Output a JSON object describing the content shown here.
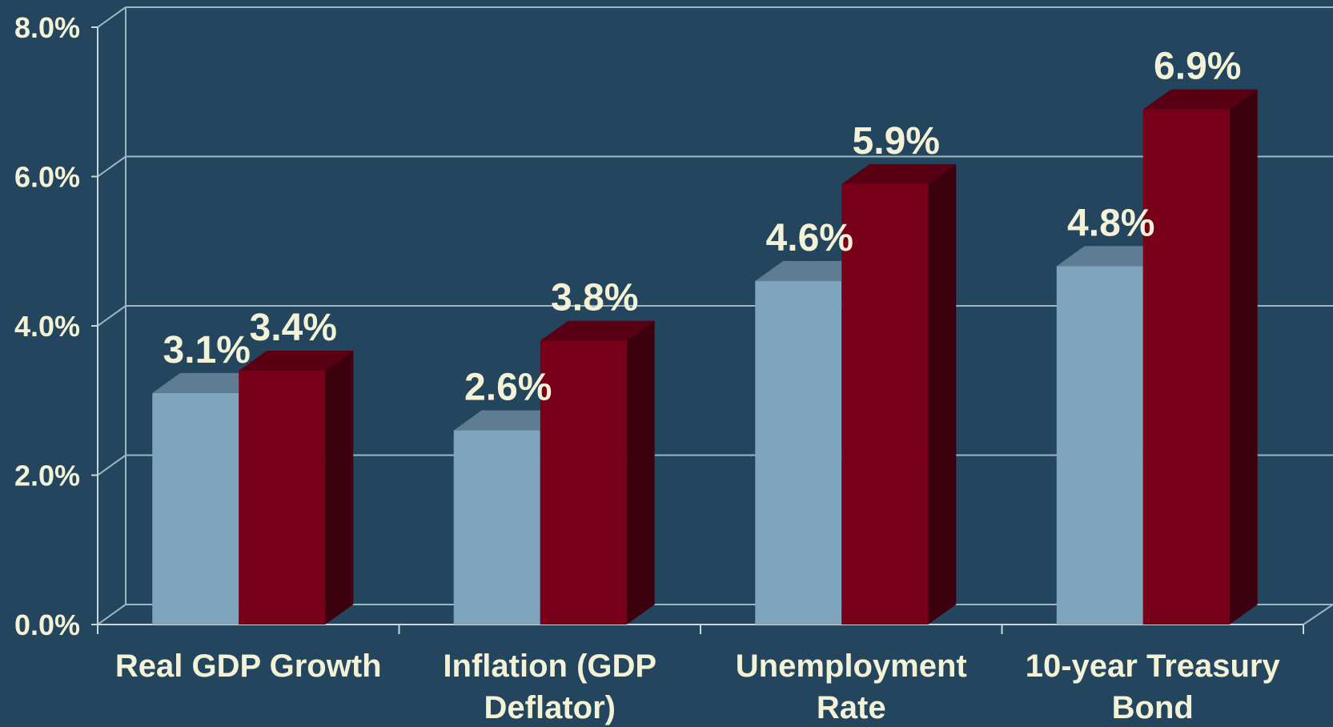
{
  "chart_data": {
    "type": "bar",
    "categories": [
      [
        "Real GDP Growth"
      ],
      [
        "Inflation (GDP",
        "Deflator)"
      ],
      [
        "Unemployment",
        "Rate"
      ],
      [
        "10-year Treasury",
        "Bond"
      ]
    ],
    "series": [
      {
        "values": [
          3.1,
          2.6,
          4.6,
          4.8
        ],
        "labels": [
          "3.1%",
          "2.6%",
          "4.6%",
          "4.8%"
        ]
      },
      {
        "values": [
          3.4,
          3.8,
          5.9,
          6.9
        ],
        "labels": [
          "3.4%",
          "3.8%",
          "5.9%",
          "6.9%"
        ]
      }
    ],
    "ylim": [
      0,
      8
    ],
    "yticks": [
      "0.0%",
      "2.0%",
      "4.0%",
      "6.0%",
      "8.0%"
    ],
    "grid": true,
    "legend": "none",
    "colors": {
      "background": "#23465e",
      "series1_front": "#7fa4bd",
      "series1_top": "#5e7d92",
      "series2_front": "#780019",
      "series2_top": "#5a0014",
      "series2_side": "#3c000e",
      "text": "#f3f1d6"
    }
  }
}
